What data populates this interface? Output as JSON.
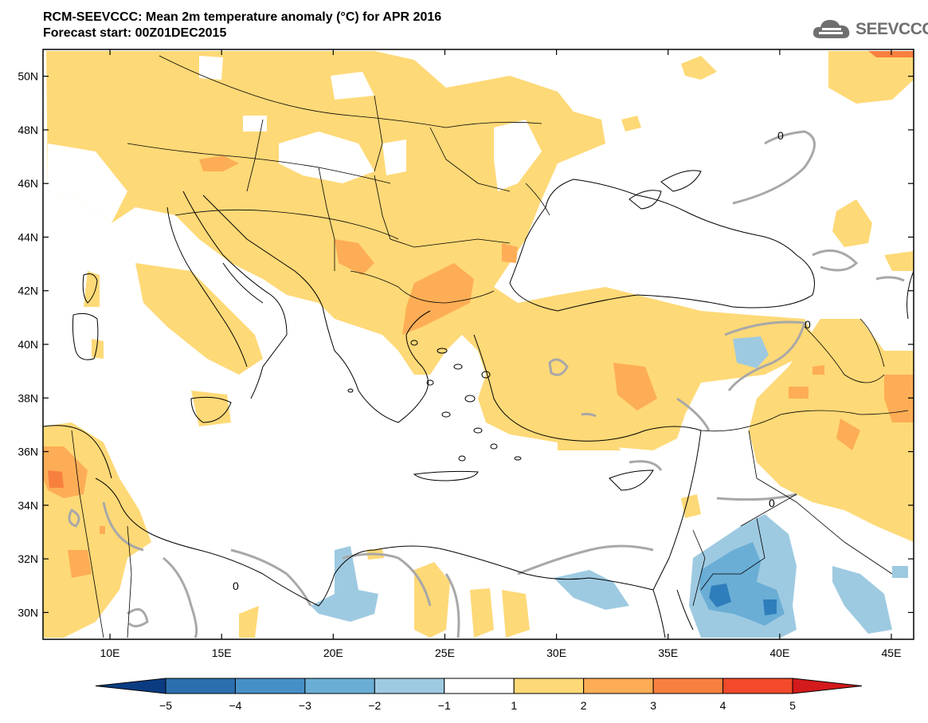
{
  "title": {
    "line1": "RCM-SEEVCCC: Mean 2m temperature anomaly (°C) for APR 2016",
    "line2": "Forecast start: 00Z01DEC2015"
  },
  "logo": {
    "text": "SEEVCCC",
    "icon": "cloud-icon",
    "color": "#6f6f6f"
  },
  "map": {
    "lon_range": [
      7,
      46
    ],
    "lat_range": [
      29,
      51
    ],
    "lon_ticks": [
      {
        "value": 10,
        "label": "10E"
      },
      {
        "value": 15,
        "label": "15E"
      },
      {
        "value": 20,
        "label": "20E"
      },
      {
        "value": 25,
        "label": "25E"
      },
      {
        "value": 30,
        "label": "30E"
      },
      {
        "value": 35,
        "label": "35E"
      },
      {
        "value": 40,
        "label": "40E"
      },
      {
        "value": 45,
        "label": "45E"
      }
    ],
    "lat_ticks": [
      {
        "value": 30,
        "label": "30N"
      },
      {
        "value": 32,
        "label": "32N"
      },
      {
        "value": 34,
        "label": "34N"
      },
      {
        "value": 36,
        "label": "36N"
      },
      {
        "value": 38,
        "label": "38N"
      },
      {
        "value": 40,
        "label": "40N"
      },
      {
        "value": 42,
        "label": "42N"
      },
      {
        "value": 44,
        "label": "44N"
      },
      {
        "value": 46,
        "label": "46N"
      },
      {
        "value": 48,
        "label": "48N"
      },
      {
        "value": 50,
        "label": "50N"
      }
    ],
    "contour_label": "0",
    "colors": {
      "warm1": "#fed977",
      "warm2": "#fdad55",
      "warm3": "#f7803f",
      "cool1": "#9ecae1",
      "cool2": "#6aaed6",
      "cool3": "#2f7ebc",
      "contour": "#a8a8a8",
      "coast": "#000000"
    }
  },
  "colorbar": {
    "labels": [
      "−5",
      "−4",
      "−3",
      "−2",
      "−1",
      "1",
      "2",
      "3",
      "4",
      "5"
    ],
    "colors": [
      "#0b3c82",
      "#2c6fae",
      "#4690c8",
      "#6aaed6",
      "#9ecae1",
      "#ffffff",
      "#fed977",
      "#fdad55",
      "#f7803f",
      "#f24a2a",
      "#d31a1c"
    ]
  }
}
